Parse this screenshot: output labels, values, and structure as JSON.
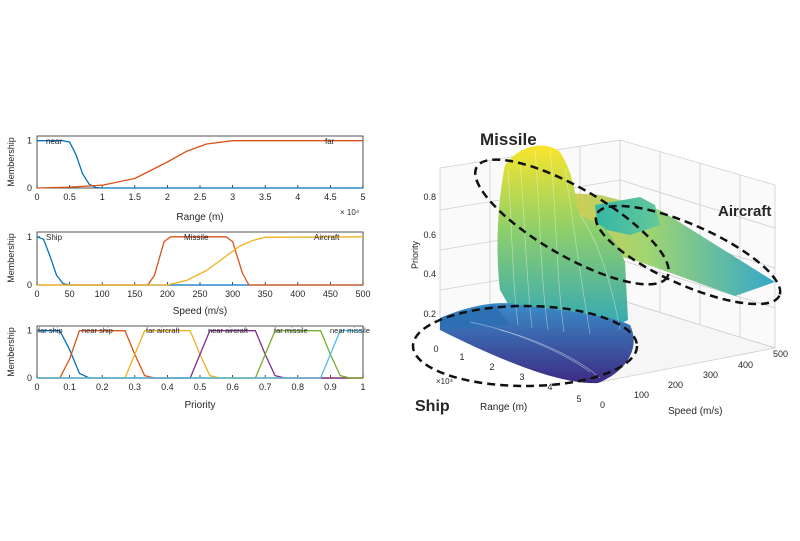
{
  "colors": {
    "blue": "#0072bd",
    "orange": "#d95319",
    "yellow": "#edb120",
    "purple": "#7e2f8e",
    "green": "#77ac30",
    "cyan": "#4dbeee"
  },
  "chart_data": [
    {
      "type": "line",
      "ylabel": "Membership",
      "xlabel": "Range (m)",
      "x_multiplier": "× 10⁴",
      "xticks": [
        "0",
        "0.5",
        "1",
        "1.5",
        "2",
        "2.5",
        "3",
        "3.5",
        "4",
        "4.5",
        "5"
      ],
      "yticks": [
        "0",
        "1"
      ],
      "xlim": [
        0,
        5
      ],
      "ylim": [
        0,
        1.1
      ],
      "series": [
        {
          "name": "near",
          "color": "#0072bd",
          "x": [
            0,
            0.4,
            0.5,
            0.6,
            0.7,
            0.8,
            0.9,
            1.0,
            5
          ],
          "values": [
            1,
            1,
            0.97,
            0.7,
            0.3,
            0.08,
            0.01,
            0,
            0
          ]
        },
        {
          "name": "far",
          "color": "#d95319",
          "x": [
            0,
            0.5,
            1.0,
            1.5,
            2.0,
            2.3,
            2.6,
            3.0,
            5
          ],
          "values": [
            0,
            0.02,
            0.06,
            0.2,
            0.55,
            0.78,
            0.93,
            1,
            1
          ]
        }
      ]
    },
    {
      "type": "line",
      "ylabel": "Membership",
      "xlabel": "Speed (m/s)",
      "xticks": [
        "0",
        "50",
        "100",
        "150",
        "200",
        "250",
        "300",
        "350",
        "400",
        "450",
        "500"
      ],
      "yticks": [
        "0",
        "1"
      ],
      "xlim": [
        0,
        500
      ],
      "ylim": [
        0,
        1.1
      ],
      "series": [
        {
          "name": "Ship",
          "color": "#0072bd",
          "x": [
            0,
            10,
            20,
            30,
            40,
            50,
            500
          ],
          "values": [
            1,
            0.95,
            0.6,
            0.2,
            0.03,
            0,
            0
          ]
        },
        {
          "name": "Missile",
          "color": "#d95319",
          "x": [
            0,
            170,
            180,
            195,
            205,
            290,
            300,
            315,
            325,
            500
          ],
          "values": [
            0,
            0,
            0.2,
            0.9,
            1,
            1,
            0.9,
            0.25,
            0,
            0
          ]
        },
        {
          "name": "Aircraft",
          "color": "#edb120",
          "x": [
            0,
            200,
            230,
            260,
            290,
            310,
            330,
            350,
            500
          ],
          "values": [
            0,
            0,
            0.1,
            0.3,
            0.6,
            0.8,
            0.92,
            0.99,
            1
          ]
        }
      ]
    },
    {
      "type": "line",
      "ylabel": "Membership",
      "xlabel": "Priority",
      "xticks": [
        "0",
        "0.1",
        "0.2",
        "0.3",
        "0.4",
        "0.5",
        "0.6",
        "0.7",
        "0.8",
        "0.9",
        "1"
      ],
      "yticks": [
        "0",
        "1"
      ],
      "xlim": [
        0,
        1
      ],
      "ylim": [
        0,
        1.1
      ],
      "series": [
        {
          "name": "far ship",
          "color": "#0072bd",
          "x": [
            0,
            0.07,
            0.1,
            0.13,
            0.16,
            1
          ],
          "values": [
            1,
            1,
            0.6,
            0.1,
            0,
            0
          ]
        },
        {
          "name": "near ship",
          "color": "#d95319",
          "x": [
            0,
            0.07,
            0.1,
            0.13,
            0.27,
            0.3,
            0.33,
            0.36,
            1
          ],
          "values": [
            0,
            0,
            0.4,
            1,
            1,
            0.5,
            0.05,
            0,
            0
          ]
        },
        {
          "name": "far aircraft",
          "color": "#edb120",
          "x": [
            0,
            0.27,
            0.3,
            0.33,
            0.47,
            0.5,
            0.53,
            0.56,
            1
          ],
          "values": [
            0,
            0,
            0.5,
            1,
            1,
            0.5,
            0.05,
            0,
            0
          ]
        },
        {
          "name": "near aircraft",
          "color": "#7e2f8e",
          "x": [
            0,
            0.47,
            0.5,
            0.53,
            0.67,
            0.7,
            0.73,
            0.76,
            1
          ],
          "values": [
            0,
            0,
            0.5,
            1,
            1,
            0.5,
            0.05,
            0,
            0
          ]
        },
        {
          "name": "far missile",
          "color": "#77ac30",
          "x": [
            0,
            0.67,
            0.7,
            0.73,
            0.87,
            0.9,
            0.93,
            0.96,
            1
          ],
          "values": [
            0,
            0,
            0.5,
            1,
            1,
            0.5,
            0.05,
            0,
            0
          ]
        },
        {
          "name": "near missile",
          "color": "#4dbeee",
          "x": [
            0,
            0.87,
            0.9,
            0.93,
            1
          ],
          "values": [
            0,
            0,
            0.5,
            1,
            1
          ]
        }
      ]
    },
    {
      "type": "surface",
      "zlabel": "Priority",
      "xlabel": "Range (m)",
      "ylabel": "Speed (m/s)",
      "x_multiplier": "×10⁴",
      "zticks": [
        "0.2",
        "0.4",
        "0.6",
        "0.8"
      ],
      "xticks": [
        "0",
        "1",
        "2",
        "3",
        "4",
        "5"
      ],
      "yticks": [
        "0",
        "100",
        "200",
        "300",
        "400",
        "500"
      ],
      "xlim": [
        0,
        5
      ],
      "ylim": [
        0,
        500
      ],
      "zlim": [
        0.1,
        0.9
      ],
      "annotations": [
        "Missile",
        "Aircraft",
        "Ship"
      ]
    }
  ]
}
